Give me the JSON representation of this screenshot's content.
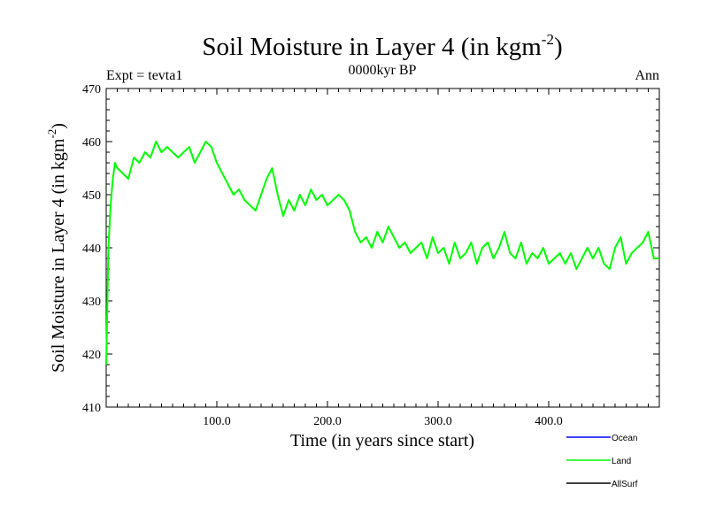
{
  "chart_data": {
    "type": "line",
    "title": "Soil Moisture in Layer 4 (in kgm",
    "title_sup": "-2",
    "title_close": ")",
    "subtitle_left": "Expt = tevta1",
    "subtitle_center": "0000kyr BP",
    "subtitle_right": "Ann",
    "xlabel": "Time (in years since start)",
    "ylabel": "Soil Moisture in Layer 4 (in kgm",
    "ylabel_sup": "-2",
    "ylabel_close": ")",
    "xlim": [
      0,
      500
    ],
    "ylim": [
      410,
      470
    ],
    "xticks": [
      100,
      200,
      300,
      400
    ],
    "xtick_labels": [
      "100.0",
      "200.0",
      "300.0",
      "400.0"
    ],
    "yticks": [
      410,
      420,
      430,
      440,
      450,
      460,
      470
    ],
    "ytick_labels": [
      "410",
      "420",
      "430",
      "440",
      "450",
      "460",
      "470"
    ],
    "legend": [
      {
        "name": "Ocean",
        "color": "#0000ff"
      },
      {
        "name": "Land",
        "color": "#00ff00"
      },
      {
        "name": "AllSurf",
        "color": "#000000"
      }
    ],
    "series": [
      {
        "name": "Land",
        "color": "#00ff00",
        "x": [
          0,
          2,
          4,
          6,
          8,
          10,
          15,
          20,
          25,
          30,
          35,
          40,
          45,
          50,
          55,
          60,
          65,
          70,
          75,
          80,
          85,
          90,
          95,
          100,
          105,
          110,
          115,
          120,
          125,
          130,
          135,
          140,
          145,
          150,
          155,
          160,
          165,
          170,
          175,
          180,
          185,
          190,
          195,
          200,
          205,
          210,
          215,
          220,
          225,
          230,
          235,
          240,
          245,
          250,
          255,
          260,
          265,
          270,
          275,
          280,
          285,
          290,
          295,
          300,
          305,
          310,
          315,
          320,
          325,
          330,
          335,
          340,
          345,
          350,
          355,
          360,
          365,
          370,
          375,
          380,
          385,
          390,
          395,
          400,
          405,
          410,
          415,
          420,
          425,
          430,
          435,
          440,
          445,
          450,
          455,
          460,
          465,
          470,
          475,
          480,
          485,
          490,
          495,
          500
        ],
        "y": [
          418,
          440,
          448,
          453,
          456,
          455,
          454,
          453,
          457,
          456,
          458,
          457,
          460,
          458,
          459,
          458,
          457,
          458,
          459,
          456,
          458,
          460,
          459,
          456,
          454,
          452,
          450,
          451,
          449,
          448,
          447,
          450,
          453,
          455,
          450,
          446,
          449,
          447,
          450,
          448,
          451,
          449,
          450,
          448,
          449,
          450,
          449,
          447,
          443,
          441,
          442,
          440,
          443,
          441,
          444,
          442,
          440,
          441,
          439,
          440,
          441,
          438,
          442,
          439,
          440,
          437,
          441,
          438,
          439,
          441,
          437,
          440,
          441,
          438,
          440,
          443,
          439,
          438,
          441,
          437,
          439,
          438,
          440,
          437,
          438,
          439,
          437,
          439,
          436,
          438,
          440,
          438,
          440,
          437,
          436,
          440,
          442,
          437,
          439,
          440,
          441,
          443,
          438,
          438
        ]
      }
    ]
  }
}
